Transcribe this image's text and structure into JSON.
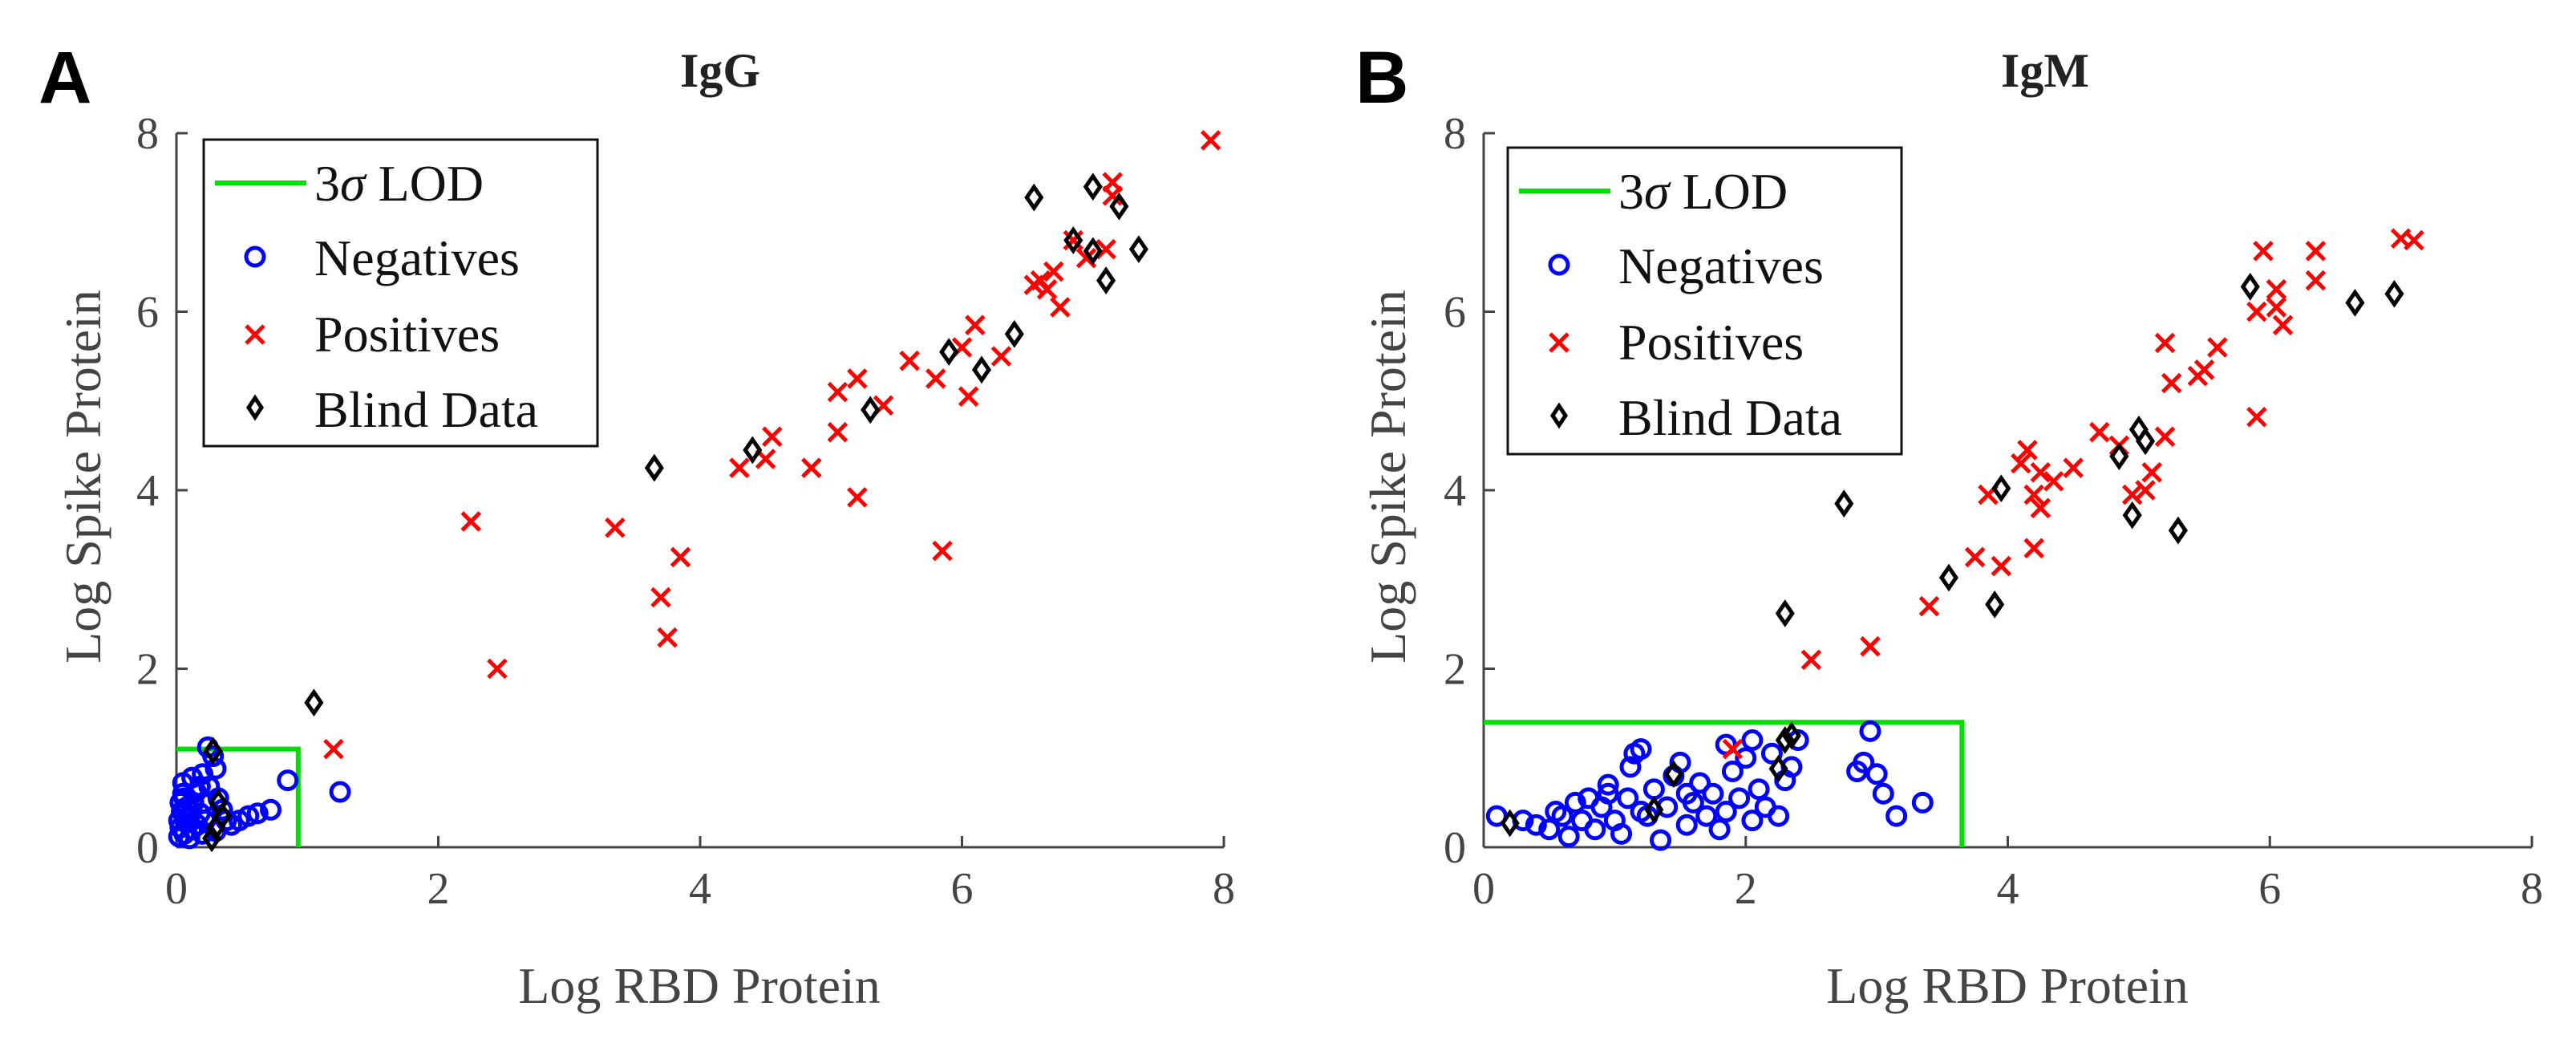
{
  "panels": [
    {
      "letter": "A"
    },
    {
      "letter": "B"
    }
  ],
  "legend": {
    "lod_prefix": "3",
    "lod_symbol": "σ",
    "lod_suffix": " LOD",
    "negatives": "Negatives",
    "positives": "Positives",
    "blind": "Blind Data"
  },
  "colors": {
    "lod": "#00dd00",
    "negatives": "#0000ff",
    "positives": "#ff0000",
    "blind": "#000000",
    "axis": "#444444"
  },
  "chart_data": [
    {
      "type": "scatter",
      "title": "IgG",
      "xlabel": "Log RBD Protein",
      "ylabel": "Log Spike Protein",
      "xlim": [
        0,
        8
      ],
      "ylim": [
        0,
        8
      ],
      "xticks": [
        0,
        2,
        4,
        6,
        8
      ],
      "yticks": [
        0,
        2,
        4,
        6,
        8
      ],
      "legend_position": "top-left",
      "lod": {
        "x": 0.93,
        "y": 1.1
      },
      "series": [
        {
          "name": "Negatives",
          "marker": "circle",
          "points": [
            [
              0.02,
              0.12
            ],
            [
              0.03,
              0.22
            ],
            [
              0.02,
              0.3
            ],
            [
              0.04,
              0.4
            ],
            [
              0.03,
              0.5
            ],
            [
              0.05,
              0.6
            ],
            [
              0.06,
              0.15
            ],
            [
              0.07,
              0.28
            ],
            [
              0.08,
              0.45
            ],
            [
              0.06,
              0.55
            ],
            [
              0.1,
              0.1
            ],
            [
              0.12,
              0.2
            ],
            [
              0.1,
              0.35
            ],
            [
              0.13,
              0.5
            ],
            [
              0.15,
              0.62
            ],
            [
              0.16,
              0.25
            ],
            [
              0.18,
              0.38
            ],
            [
              0.2,
              0.15
            ],
            [
              0.21,
              0.5
            ],
            [
              0.22,
              0.3
            ],
            [
              0.25,
              0.68
            ],
            [
              0.24,
              1.12
            ],
            [
              0.28,
              1.02
            ],
            [
              0.2,
              0.82
            ],
            [
              0.3,
              0.88
            ],
            [
              0.32,
              0.55
            ],
            [
              0.35,
              0.42
            ],
            [
              0.38,
              0.3
            ],
            [
              0.42,
              0.25
            ],
            [
              0.48,
              0.3
            ],
            [
              0.55,
              0.35
            ],
            [
              0.62,
              0.38
            ],
            [
              0.72,
              0.42
            ],
            [
              0.85,
              0.75
            ],
            [
              1.25,
              0.62
            ],
            [
              0.05,
              0.72
            ],
            [
              0.12,
              0.78
            ],
            [
              0.18,
              0.68
            ],
            [
              0.3,
              0.18
            ],
            [
              0.08,
              0.33
            ]
          ]
        },
        {
          "name": "Positives",
          "marker": "x",
          "points": [
            [
              7.9,
              7.92
            ],
            [
              7.15,
              7.45
            ],
            [
              7.15,
              7.3
            ],
            [
              6.55,
              6.3
            ],
            [
              6.6,
              6.35
            ],
            [
              6.65,
              6.25
            ],
            [
              6.7,
              6.45
            ],
            [
              6.75,
              6.05
            ],
            [
              6.85,
              6.8
            ],
            [
              6.95,
              6.6
            ],
            [
              7.1,
              6.7
            ],
            [
              6.1,
              5.85
            ],
            [
              6.0,
              5.6
            ],
            [
              6.3,
              5.5
            ],
            [
              6.05,
              5.05
            ],
            [
              5.8,
              5.25
            ],
            [
              5.6,
              5.45
            ],
            [
              5.4,
              4.95
            ],
            [
              5.2,
              5.25
            ],
            [
              5.05,
              5.1
            ],
            [
              5.05,
              4.65
            ],
            [
              4.85,
              4.25
            ],
            [
              4.55,
              4.6
            ],
            [
              4.5,
              4.35
            ],
            [
              4.3,
              4.25
            ],
            [
              5.2,
              3.92
            ],
            [
              5.85,
              3.32
            ],
            [
              3.85,
              3.25
            ],
            [
              3.35,
              3.58
            ],
            [
              3.7,
              2.8
            ],
            [
              3.75,
              2.35
            ],
            [
              2.25,
              3.65
            ],
            [
              2.45,
              2.0
            ],
            [
              1.2,
              1.1
            ]
          ]
        },
        {
          "name": "Blind Data",
          "marker": "diamond",
          "points": [
            [
              6.55,
              7.28
            ],
            [
              7.0,
              7.4
            ],
            [
              7.2,
              7.18
            ],
            [
              6.85,
              6.8
            ],
            [
              7.0,
              6.68
            ],
            [
              7.35,
              6.7
            ],
            [
              7.1,
              6.35
            ],
            [
              6.4,
              5.75
            ],
            [
              5.9,
              5.55
            ],
            [
              6.15,
              5.35
            ],
            [
              5.3,
              4.9
            ],
            [
              4.4,
              4.45
            ],
            [
              3.65,
              4.25
            ],
            [
              1.05,
              1.62
            ],
            [
              0.28,
              1.08
            ],
            [
              0.32,
              0.5
            ],
            [
              0.35,
              0.35
            ],
            [
              0.27,
              0.1
            ],
            [
              0.3,
              0.22
            ]
          ]
        }
      ]
    },
    {
      "type": "scatter",
      "title": "IgM",
      "xlabel": "Log RBD Protein",
      "ylabel": "Log Spike Protein",
      "xlim": [
        0,
        8
      ],
      "ylim": [
        0,
        8
      ],
      "xticks": [
        0,
        2,
        4,
        6,
        8
      ],
      "yticks": [
        0,
        2,
        4,
        6,
        8
      ],
      "legend_position": "top-left",
      "lod": {
        "x": 3.65,
        "y": 1.4
      },
      "series": [
        {
          "name": "Negatives",
          "marker": "circle",
          "points": [
            [
              0.1,
              0.35
            ],
            [
              0.3,
              0.3
            ],
            [
              0.4,
              0.25
            ],
            [
              0.5,
              0.2
            ],
            [
              0.6,
              0.35
            ],
            [
              0.65,
              0.12
            ],
            [
              0.7,
              0.5
            ],
            [
              0.75,
              0.3
            ],
            [
              0.8,
              0.55
            ],
            [
              0.85,
              0.2
            ],
            [
              0.9,
              0.45
            ],
            [
              0.95,
              0.6
            ],
            [
              1.0,
              0.3
            ],
            [
              1.05,
              0.15
            ],
            [
              1.1,
              0.55
            ],
            [
              1.12,
              0.9
            ],
            [
              1.15,
              1.05
            ],
            [
              1.2,
              1.1
            ],
            [
              1.25,
              0.35
            ],
            [
              1.3,
              0.65
            ],
            [
              1.35,
              0.08
            ],
            [
              1.4,
              0.45
            ],
            [
              1.45,
              0.8
            ],
            [
              1.5,
              0.95
            ],
            [
              1.55,
              0.25
            ],
            [
              1.6,
              0.5
            ],
            [
              1.65,
              0.72
            ],
            [
              1.7,
              0.35
            ],
            [
              1.75,
              0.6
            ],
            [
              1.8,
              0.2
            ],
            [
              1.85,
              0.4
            ],
            [
              1.9,
              0.85
            ],
            [
              1.95,
              0.55
            ],
            [
              2.0,
              1.0
            ],
            [
              2.05,
              0.3
            ],
            [
              2.1,
              0.65
            ],
            [
              2.15,
              0.45
            ],
            [
              2.2,
              1.05
            ],
            [
              2.25,
              0.35
            ],
            [
              2.3,
              0.75
            ],
            [
              2.35,
              0.9
            ],
            [
              2.05,
              1.2
            ],
            [
              1.85,
              1.15
            ],
            [
              2.4,
              1.2
            ],
            [
              2.85,
              0.85
            ],
            [
              2.95,
              1.3
            ],
            [
              2.9,
              0.95
            ],
            [
              3.0,
              0.82
            ],
            [
              3.05,
              0.6
            ],
            [
              3.15,
              0.35
            ],
            [
              3.35,
              0.5
            ],
            [
              0.95,
              0.7
            ],
            [
              1.2,
              0.4
            ],
            [
              1.55,
              0.6
            ],
            [
              0.55,
              0.4
            ]
          ]
        },
        {
          "name": "Positives",
          "marker": "x",
          "points": [
            [
              7.0,
              6.82
            ],
            [
              7.1,
              6.8
            ],
            [
              5.95,
              6.68
            ],
            [
              6.35,
              6.68
            ],
            [
              6.05,
              6.25
            ],
            [
              6.05,
              6.05
            ],
            [
              6.1,
              5.85
            ],
            [
              5.9,
              6.0
            ],
            [
              6.35,
              6.35
            ],
            [
              5.9,
              4.82
            ],
            [
              5.6,
              5.6
            ],
            [
              5.5,
              5.35
            ],
            [
              5.45,
              5.28
            ],
            [
              5.2,
              5.65
            ],
            [
              5.25,
              5.2
            ],
            [
              5.2,
              4.6
            ],
            [
              5.1,
              4.2
            ],
            [
              5.05,
              4.0
            ],
            [
              4.95,
              3.95
            ],
            [
              4.85,
              4.5
            ],
            [
              4.7,
              4.65
            ],
            [
              4.5,
              4.25
            ],
            [
              4.35,
              4.1
            ],
            [
              4.25,
              4.2
            ],
            [
              4.2,
              3.95
            ],
            [
              4.15,
              4.45
            ],
            [
              4.1,
              4.3
            ],
            [
              4.25,
              3.8
            ],
            [
              4.2,
              3.35
            ],
            [
              3.95,
              3.15
            ],
            [
              3.85,
              3.95
            ],
            [
              3.75,
              3.25
            ],
            [
              3.4,
              2.7
            ],
            [
              2.95,
              2.25
            ],
            [
              2.5,
              2.1
            ],
            [
              1.9,
              1.1
            ]
          ]
        },
        {
          "name": "Blind Data",
          "marker": "diamond",
          "points": [
            [
              5.85,
              6.28
            ],
            [
              6.65,
              6.1
            ],
            [
              6.95,
              6.2
            ],
            [
              5.0,
              4.68
            ],
            [
              5.05,
              4.55
            ],
            [
              4.85,
              4.38
            ],
            [
              4.95,
              3.72
            ],
            [
              5.3,
              3.55
            ],
            [
              3.95,
              4.02
            ],
            [
              3.55,
              3.02
            ],
            [
              3.9,
              2.72
            ],
            [
              2.75,
              3.85
            ],
            [
              2.3,
              2.62
            ],
            [
              2.35,
              1.25
            ],
            [
              2.3,
              1.2
            ],
            [
              2.25,
              0.88
            ],
            [
              1.45,
              0.82
            ],
            [
              1.3,
              0.42
            ],
            [
              0.2,
              0.27
            ]
          ]
        }
      ]
    }
  ]
}
